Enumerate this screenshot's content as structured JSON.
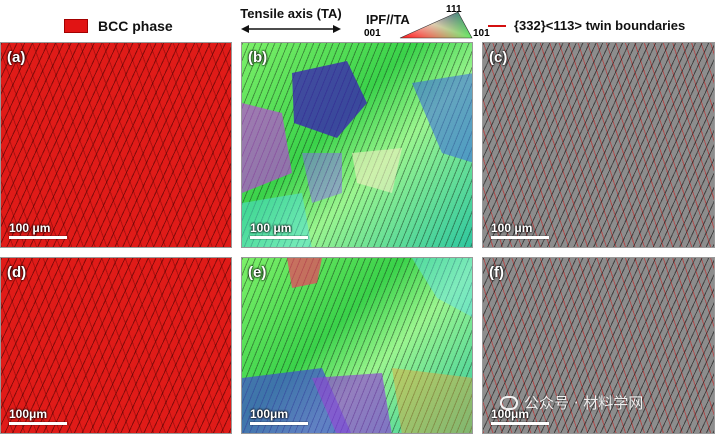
{
  "legend": {
    "phase_label": "BCC phase",
    "phase_color": "#e11414",
    "tensile_label": "Tensile axis (TA)",
    "ipf_label": "IPF//TA",
    "ipf_corners": {
      "c001": "001",
      "c101": "101",
      "c111": "111"
    },
    "twin_label": "{332}<113> twin boundaries",
    "twin_color": "#d41010"
  },
  "panels": [
    {
      "label": "(a)",
      "scale": "100 μm"
    },
    {
      "label": "(b)",
      "scale": "100 μm"
    },
    {
      "label": "(c)",
      "scale": "100 μm"
    },
    {
      "label": "(d)",
      "scale": "100μm"
    },
    {
      "label": "(e)",
      "scale": "100μm"
    },
    {
      "label": "(f)",
      "scale": "100μm"
    }
  ],
  "watermark": {
    "text": "公众号 · 材料学网"
  }
}
